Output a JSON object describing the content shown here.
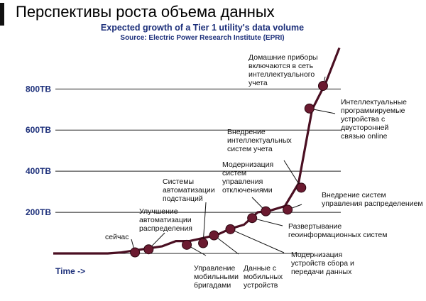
{
  "page": {
    "title": "Перспективы роста объема данных"
  },
  "chart_data": {
    "type": "line",
    "title": "Expected growth of a Tier 1 utility's data volume",
    "subtitle": "Source: Electric Power Research Institute (EPRI)",
    "xlabel": "Time ->",
    "ylabel": "",
    "y_ticks": [
      "200TB",
      "400TB",
      "600TB",
      "800TB"
    ],
    "y_tick_values": [
      200,
      400,
      600,
      800
    ],
    "ylim": [
      0,
      1000
    ],
    "grid": true,
    "series": [
      {
        "values": [
          0,
          0,
          0,
          5,
          15,
          35,
          60,
          60,
          75,
          90,
          120,
          140,
          200,
          210,
          230,
          340,
          700,
          830,
          1000
        ]
      }
    ],
    "x": [
      0,
      10,
      20,
      25,
      30,
      40,
      45,
      50,
      55,
      60,
      65,
      70,
      75,
      80,
      85,
      90,
      95,
      100,
      105
    ],
    "milestones": [
      {
        "x": 30,
        "y": 5,
        "label": [
          "сейчас"
        ]
      },
      {
        "x": 35,
        "y": 20,
        "label": [
          "Улучшение",
          "автоматизации",
          "распределения"
        ]
      },
      {
        "x": 49,
        "y": 42,
        "label": [
          "Управление",
          "мобильными",
          "бригадами"
        ]
      },
      {
        "x": 55,
        "y": 50,
        "label": [
          "Системы",
          "автоматизации",
          "подстанций"
        ]
      },
      {
        "x": 59,
        "y": 88,
        "label": [
          "Данные с",
          "мобильных",
          "устройств"
        ]
      },
      {
        "x": 65,
        "y": 118,
        "label": [
          "Модернизация",
          "устройств сбора и",
          "передачи данных"
        ]
      },
      {
        "x": 73,
        "y": 172,
        "label": [
          "Развертывание",
          "геоинформационных систем"
        ]
      },
      {
        "x": 78,
        "y": 205,
        "label": [
          "Модернизация",
          "систем",
          "управления",
          "отключениями"
        ]
      },
      {
        "x": 86,
        "y": 213,
        "label": [
          "Внедрение систем",
          "управления распределением"
        ]
      },
      {
        "x": 91,
        "y": 320,
        "label": [
          "Внедрение",
          "интеллектуальных",
          "систем учета"
        ]
      },
      {
        "x": 94,
        "y": 705,
        "label": [
          "Интеллектуальные",
          "программируемые",
          "устройства с",
          "двусторонней",
          "связью online"
        ]
      },
      {
        "x": 99,
        "y": 815,
        "label": [
          "Домашние приборы",
          "включаются в сеть",
          "интеллектуального",
          "учета"
        ]
      }
    ]
  },
  "colors": {
    "axis_text": "#1c2f7a",
    "line": "#4a0f22",
    "marker": "#6b1a30",
    "grid": "#222222",
    "annotation_text": "#111111"
  }
}
